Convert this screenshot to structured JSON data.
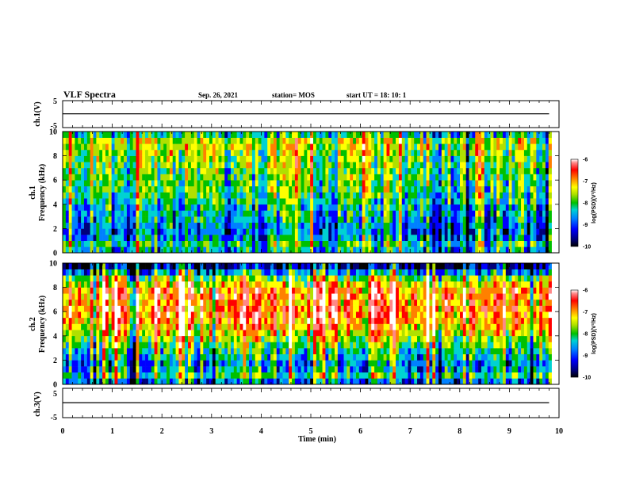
{
  "header": {
    "title": "VLF Spectra",
    "date": "Sep. 26, 2021",
    "station": "station= MOS",
    "start": "start  UT =   18: 10: 1"
  },
  "colors": {
    "spectrum": [
      "#000000",
      "#00007a",
      "#0000ff",
      "#0080ff",
      "#00d2d2",
      "#00c000",
      "#b0e000",
      "#ffff00",
      "#ff8000",
      "#ff0000",
      "#ff8888",
      "#ffffff"
    ]
  },
  "chart_data": [
    {
      "type": "line",
      "name": "ch1-waveform",
      "ylabel": "ch.1(V)",
      "ylim": [
        -5,
        5
      ],
      "yticks": [
        "5",
        "-5"
      ],
      "xlim": [
        0,
        10
      ],
      "series": [
        {
          "values_description": "flat",
          "x": [
            0,
            9.8
          ],
          "y": [
            0.1,
            0.1
          ]
        }
      ]
    },
    {
      "type": "heatmap",
      "name": "ch1-spectrogram",
      "ylabel": "ch.1",
      "ylabel2": "Frequency (kHz)",
      "xlim": [
        0,
        10
      ],
      "data_xmax": 9.85,
      "ylim": [
        0,
        10
      ],
      "yticks": [
        "0",
        "2",
        "4",
        "6",
        "8",
        "10"
      ],
      "colorbar": {
        "label": "log(PSD)(V²/Hz)",
        "ticks": [
          "-6",
          "-7",
          "-8",
          "-9",
          "-10"
        ],
        "range": [
          -10,
          -6
        ]
      },
      "band_profile": [
        -8.6,
        -8.3,
        -8.8,
        -8.9,
        -8.8,
        -8.7,
        -8.6,
        -8.5,
        -8.4,
        -8.3,
        -8.2,
        -8.2,
        -8.1,
        -8.1,
        -8.0,
        -8.0,
        -7.9,
        -7.8,
        -7.8,
        -8.4
      ]
    },
    {
      "type": "heatmap",
      "name": "ch2-spectrogram",
      "ylabel": "ch.2",
      "ylabel2": "Frequency (kHz)",
      "xlim": [
        0,
        10
      ],
      "data_xmax": 9.85,
      "ylim": [
        0,
        10
      ],
      "yticks": [
        "0",
        "2",
        "4",
        "6",
        "8",
        "10"
      ],
      "colorbar": {
        "label": "log(PSD)(V²/Hz)",
        "ticks": [
          "-6",
          "-7",
          "-8",
          "-9",
          "-10"
        ],
        "range": [
          -10,
          -6
        ]
      },
      "band_profile": [
        -8.8,
        -8.2,
        -8.6,
        -8.7,
        -8.4,
        -8.3,
        -8.0,
        -7.8,
        -7.5,
        -7.3,
        -7.1,
        -7.0,
        -7.0,
        -7.1,
        -7.0,
        -7.1,
        -7.4,
        -7.9,
        -8.6,
        -9.4
      ]
    },
    {
      "type": "line",
      "name": "ch3-waveform",
      "ylabel": "ch.3(V)",
      "ylim": [
        -5,
        5
      ],
      "yticks": [
        "5",
        "-5"
      ],
      "xlim": [
        0,
        10
      ],
      "series": [
        {
          "values_description": "flat",
          "x": [
            0,
            9.8
          ],
          "y": [
            0.1,
            0.1
          ]
        }
      ]
    }
  ],
  "xaxis": {
    "label": "Time (min)",
    "ticks": [
      "0",
      "1",
      "2",
      "3",
      "4",
      "5",
      "6",
      "7",
      "8",
      "9",
      "10"
    ]
  }
}
